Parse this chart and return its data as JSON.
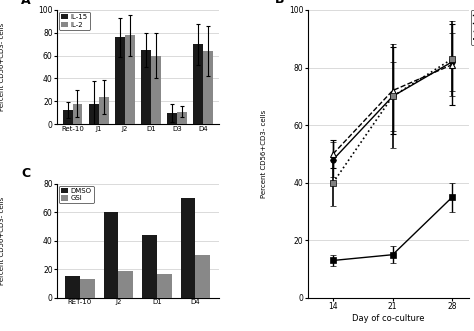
{
  "panel_A": {
    "categories": [
      "Ret-10",
      "J1",
      "J2",
      "D1",
      "D3",
      "D4"
    ],
    "IL15_values": [
      12,
      18,
      76,
      65,
      10,
      70
    ],
    "IL15_errors": [
      7,
      20,
      17,
      15,
      8,
      18
    ],
    "IL2_values": [
      18,
      24,
      78,
      60,
      11,
      64
    ],
    "IL2_errors": [
      12,
      15,
      18,
      20,
      5,
      22
    ],
    "ylabel": "Percent CD56+CD3- cells",
    "ylim": [
      0,
      100
    ],
    "yticks": [
      0,
      20,
      40,
      60,
      80,
      100
    ],
    "bar_color_IL15": "#1a1a1a",
    "bar_color_IL2": "#888888",
    "label": "A"
  },
  "panel_B": {
    "days": [
      14,
      21,
      28
    ],
    "RET10_values": [
      13,
      15,
      35
    ],
    "RET10_errors": [
      2,
      3,
      5
    ],
    "J2_values": [
      48,
      70,
      82
    ],
    "J2_errors": [
      6,
      12,
      10
    ],
    "D1_values": [
      50,
      72,
      81
    ],
    "D1_errors": [
      5,
      15,
      14
    ],
    "D4_values": [
      40,
      70,
      83
    ],
    "D4_errors": [
      8,
      18,
      13
    ],
    "ylabel": "Percent CD56+CD3- cells",
    "xlabel": "Day of co-culture",
    "ylim": [
      0,
      100
    ],
    "yticks": [
      0,
      20,
      40,
      60,
      80,
      100
    ],
    "label": "B"
  },
  "panel_C": {
    "categories": [
      "RET-10",
      "J2",
      "D1",
      "D4"
    ],
    "DMSO_values": [
      15,
      60,
      44,
      70
    ],
    "GSI_values": [
      13,
      19,
      17,
      30
    ],
    "ylabel": "Percent CD56+CD3- cells",
    "ylim": [
      0,
      80
    ],
    "yticks": [
      0,
      20,
      40,
      60,
      80
    ],
    "bar_color_DMSO": "#1a1a1a",
    "bar_color_GSI": "#888888",
    "label": "C"
  }
}
